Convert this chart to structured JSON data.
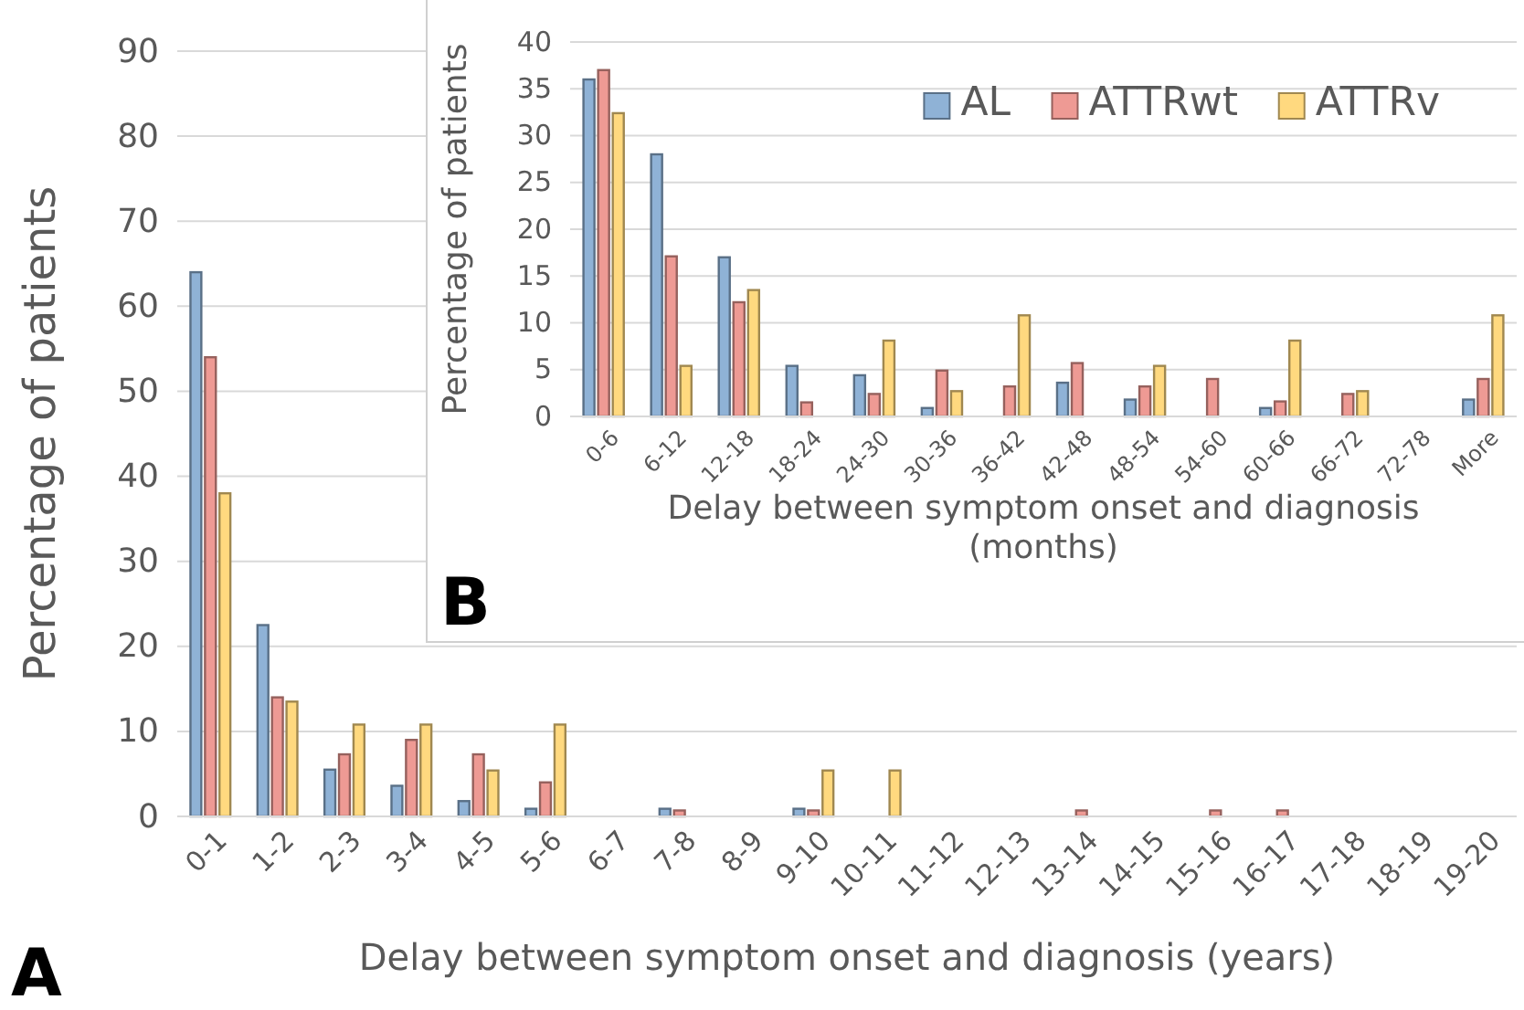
{
  "chart_data": [
    {
      "type": "bar",
      "ylabel": "Percentage of patients",
      "xlabel": "Delay between symptom onset and diagnosis (years)",
      "categories": [
        "0-1",
        "1-2",
        "2-3",
        "3-4",
        "4-5",
        "5-6",
        "6-7",
        "7-8",
        "8-9",
        "9-10",
        "10-11",
        "11-12",
        "12-13",
        "13-14",
        "14-15",
        "15-16",
        "16-17",
        "17-18",
        "18-19",
        "19-20"
      ],
      "series": [
        {
          "color": "#8fb2d6",
          "values": [
            64,
            22.5,
            5.5,
            3.6,
            1.8,
            0.9,
            0,
            0.9,
            0,
            0.9,
            0,
            0,
            0,
            0,
            0,
            0,
            0,
            0,
            0,
            0
          ]
        },
        {
          "color": "#ee9a94",
          "values": [
            54,
            14,
            7.3,
            9,
            7.3,
            4,
            0,
            0.7,
            0,
            0.7,
            0,
            0,
            0,
            0.7,
            0,
            0.7,
            0.7,
            0,
            0,
            0
          ]
        },
        {
          "color": "#ffd97f",
          "values": [
            38,
            13.5,
            10.8,
            10.8,
            5.4,
            10.8,
            0,
            0,
            0,
            5.4,
            5.4,
            0,
            0,
            0,
            0,
            0,
            0,
            0,
            0,
            0
          ]
        }
      ],
      "ylim": [
        0,
        90
      ],
      "yticks": [
        0,
        10,
        20,
        30,
        40,
        50,
        60,
        70,
        80,
        90
      ],
      "grid": "y",
      "legend": false,
      "annotations": [
        "A"
      ]
    },
    {
      "type": "bar",
      "ylabel": "Percentage of patients",
      "xlabel": "Delay between symptom onset and diagnosis (months)",
      "categories": [
        "0-6",
        "6-12",
        "12-18",
        "18-24",
        "24-30",
        "30-36",
        "36-42",
        "42-48",
        "48-54",
        "54-60",
        "60-66",
        "66-72",
        "72-78",
        "More"
      ],
      "series": [
        {
          "name": "AL",
          "color": "#8fb2d6",
          "values": [
            36,
            28,
            17,
            5.4,
            4.4,
            0.9,
            0,
            3.6,
            1.8,
            0,
            0.9,
            0,
            0,
            1.8
          ]
        },
        {
          "name": "ATTRwt",
          "color": "#ee9a94",
          "values": [
            37,
            17.1,
            12.2,
            1.5,
            2.4,
            4.9,
            3.2,
            5.7,
            3.2,
            4,
            1.6,
            2.4,
            0,
            4
          ]
        },
        {
          "name": "ATTRv",
          "color": "#ffd97f",
          "values": [
            32.4,
            5.4,
            13.5,
            0,
            8.1,
            2.7,
            10.8,
            0,
            5.4,
            0,
            8.1,
            2.7,
            0,
            10.8
          ]
        }
      ],
      "ylim": [
        0,
        40
      ],
      "yticks": [
        0,
        5,
        10,
        15,
        20,
        25,
        30,
        35,
        40
      ],
      "grid": "y",
      "legend": "top right",
      "annotations": [
        "B"
      ]
    }
  ]
}
